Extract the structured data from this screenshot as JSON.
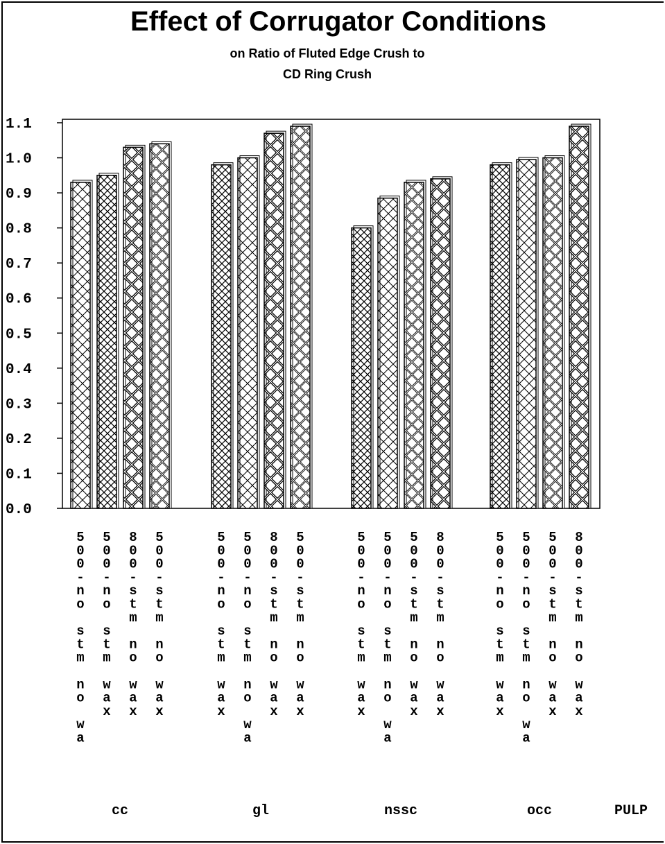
{
  "chart_data": {
    "type": "bar",
    "title": "Effect of Corrugator Conditions",
    "subtitle_line1": "on Ratio of Fluted Edge Crush to",
    "subtitle_line2": "CD Ring Crush",
    "xlabel": "PULP",
    "ylabel": "",
    "ylim": [
      0.0,
      1.1
    ],
    "yticks": [
      "0.0",
      "0.1",
      "0.2",
      "0.3",
      "0.4",
      "0.5",
      "0.6",
      "0.7",
      "0.8",
      "0.9",
      "1.0",
      "1.1"
    ],
    "grid": false,
    "legend": "none",
    "groups": [
      {
        "name": "cc",
        "bars": [
          {
            "label": "500-no stm no wa",
            "value": 0.93
          },
          {
            "label": "500-no stm wax",
            "value": 0.95
          },
          {
            "label": "800-stm no wax",
            "value": 1.03
          },
          {
            "label": "500-stm no wax",
            "value": 1.04
          }
        ]
      },
      {
        "name": "gl",
        "bars": [
          {
            "label": "500-no stm wax",
            "value": 0.98
          },
          {
            "label": "500-no stm no wa",
            "value": 1.0
          },
          {
            "label": "800-stm no wax",
            "value": 1.07
          },
          {
            "label": "500-stm no wax",
            "value": 1.09
          }
        ]
      },
      {
        "name": "nssc",
        "bars": [
          {
            "label": "500-no stm wax",
            "value": 0.8
          },
          {
            "label": "500-no stm no wa",
            "value": 0.885
          },
          {
            "label": "500-stm no wax",
            "value": 0.93
          },
          {
            "label": "800-stm no wax",
            "value": 0.94
          }
        ]
      },
      {
        "name": "occ",
        "bars": [
          {
            "label": "500-no stm wax",
            "value": 0.98
          },
          {
            "label": "500-no stm no wa",
            "value": 0.995
          },
          {
            "label": "500-stm no wax",
            "value": 1.0
          },
          {
            "label": "800-stm no wax",
            "value": 1.09
          }
        ]
      }
    ],
    "pattern_by_label": {
      "500-no stm wax": "hatch-dense",
      "500-no stm no wa": "hatch-light",
      "500-stm no wax": "hatch-medium",
      "800-stm no wax": "hatch-heavy"
    }
  }
}
